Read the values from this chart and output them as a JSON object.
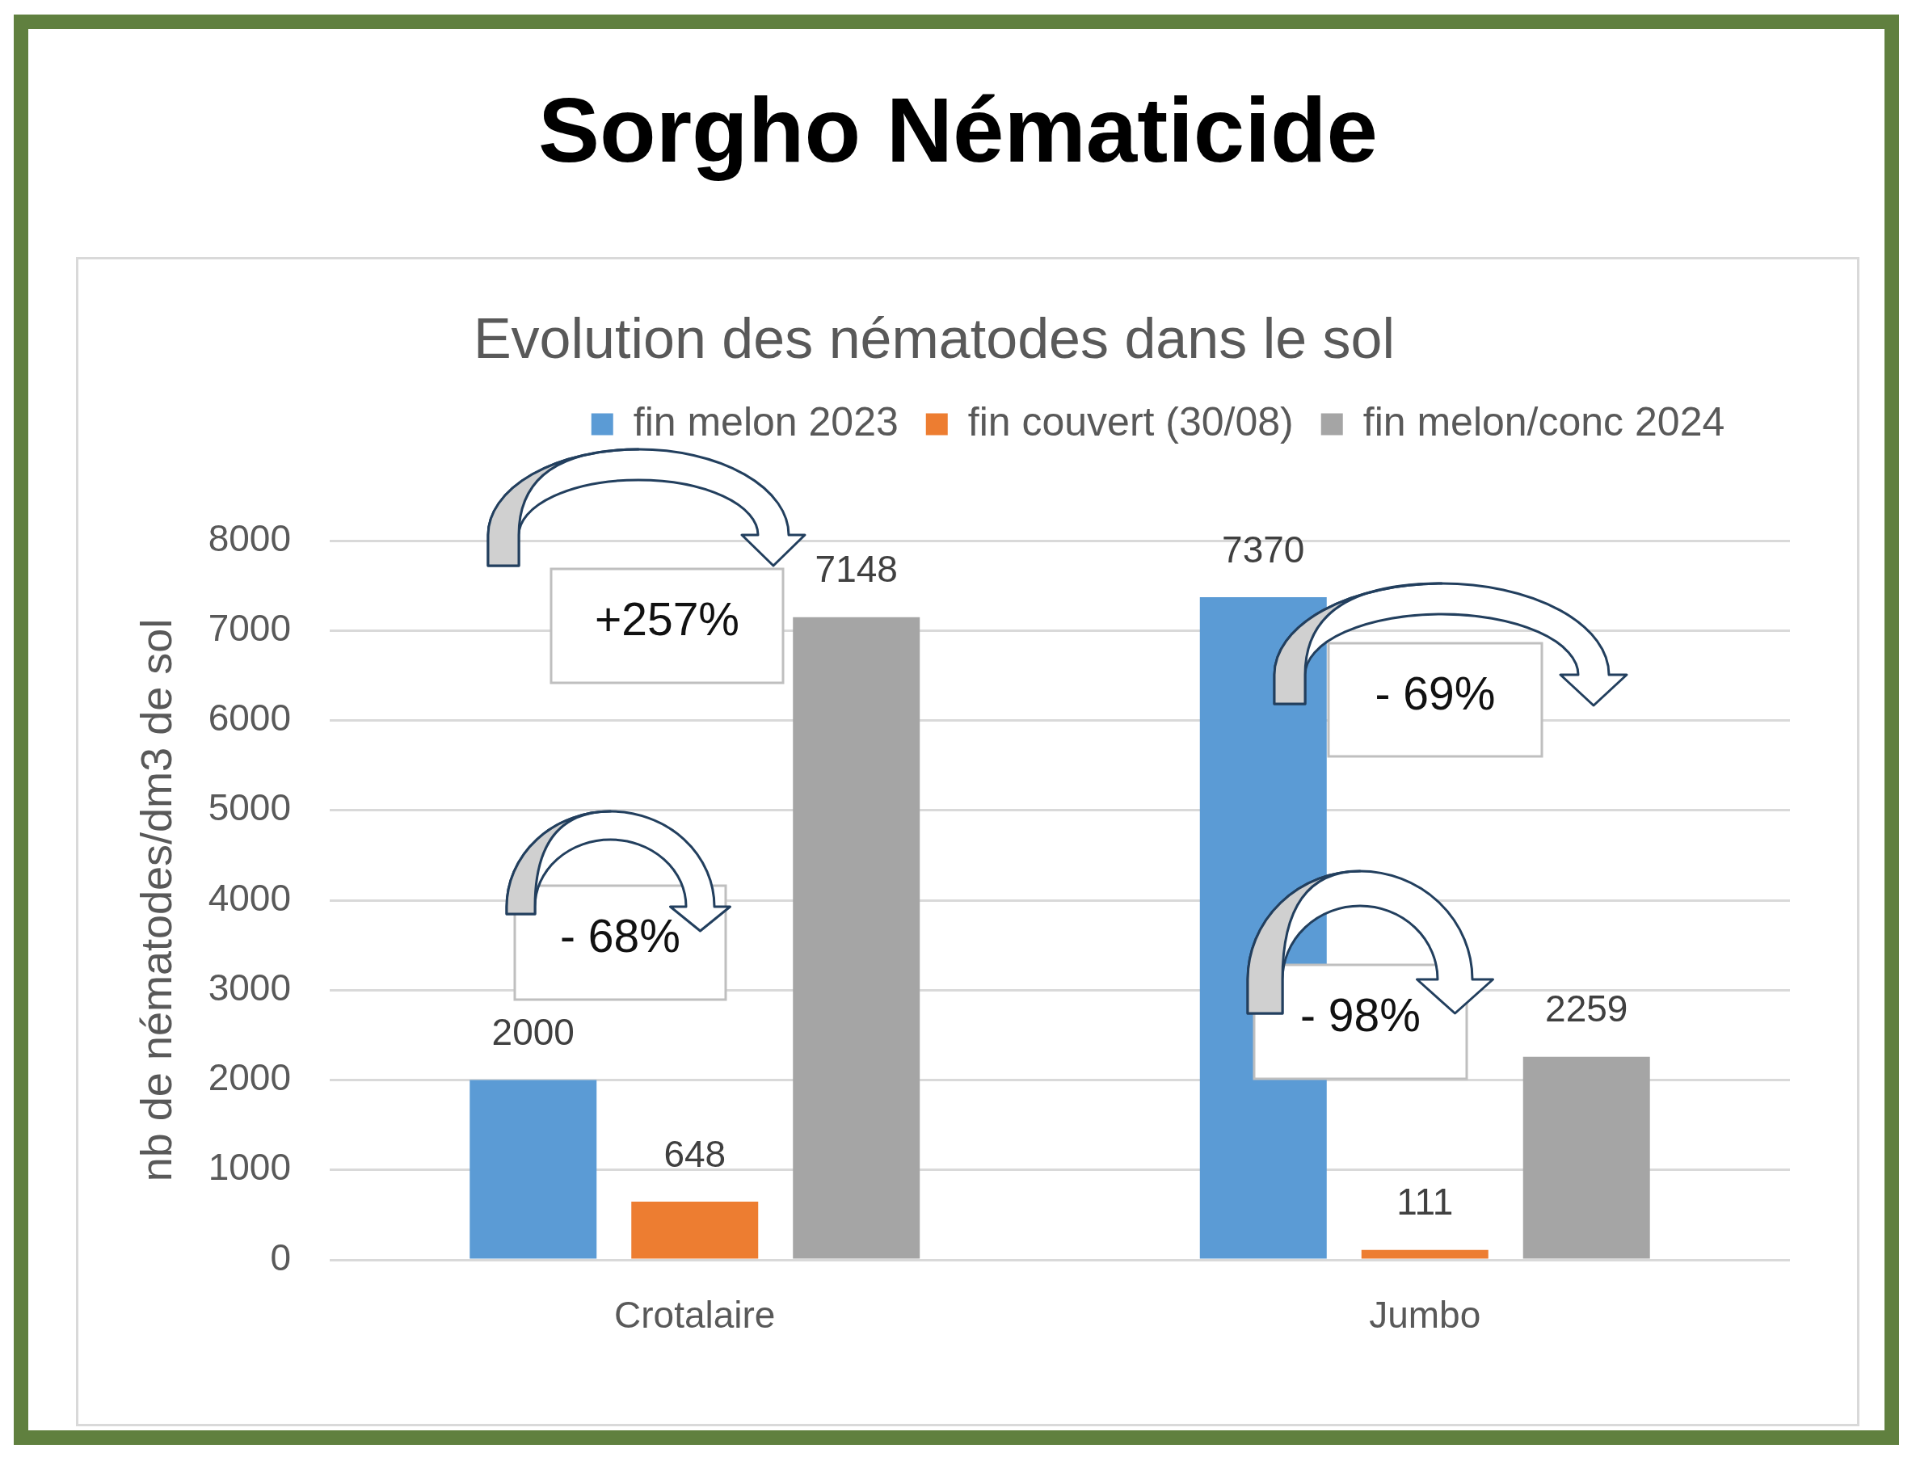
{
  "chart_data": {
    "type": "bar",
    "title": "Sorgho Nématicide",
    "subtitle": "Evolution des nématodes dans le sol",
    "ylabel": "nb de nématodes/dm3 de sol",
    "categories": [
      "Crotalaire",
      "Jumbo"
    ],
    "series": [
      {
        "name": "fin melon 2023",
        "color": "#5b9bd5",
        "values": [
          2000,
          7370
        ]
      },
      {
        "name": "fin couvert (30/08)",
        "color": "#ed7d31",
        "values": [
          648,
          111
        ]
      },
      {
        "name": "fin melon/conc 2024",
        "color": "#a5a5a5",
        "values": [
          7148,
          2259
        ]
      }
    ],
    "ylim": [
      0,
      8000
    ],
    "yticks": [
      0,
      1000,
      2000,
      3000,
      4000,
      5000,
      6000,
      7000,
      8000
    ],
    "grid": "y",
    "legend": "top",
    "data_labels": true,
    "annotations": [
      "+257%",
      "- 68%",
      "- 69%",
      "- 98%"
    ]
  }
}
